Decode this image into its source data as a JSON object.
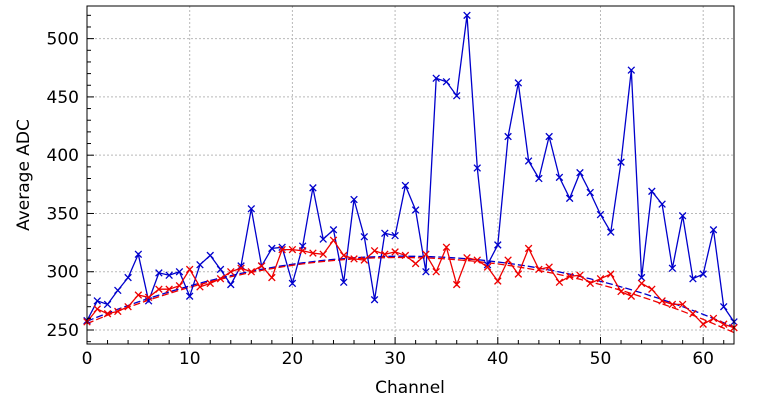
{
  "chart_data": {
    "type": "line",
    "xlabel": "Channel",
    "ylabel": "Average ADC",
    "xlim": [
      0,
      63
    ],
    "ylim": [
      238,
      528
    ],
    "x_ticks": [
      0,
      10,
      20,
      30,
      40,
      50,
      60
    ],
    "y_ticks": [
      250,
      300,
      350,
      400,
      450,
      500
    ],
    "grid": true,
    "series": [
      {
        "color": "#0000cc",
        "marker": "x",
        "values": [
          258,
          275,
          272,
          284,
          295,
          315,
          275,
          299,
          297,
          300,
          279,
          306,
          314,
          302,
          289,
          305,
          354,
          305,
          320,
          321,
          290,
          322,
          372,
          328,
          336,
          291,
          362,
          330,
          276,
          333,
          331,
          374,
          353,
          300,
          466,
          463,
          451,
          520,
          389,
          306,
          323,
          416,
          462,
          395,
          380,
          416,
          381,
          363,
          385,
          368,
          349,
          334,
          394,
          473,
          295,
          369,
          358,
          303,
          348,
          294,
          298,
          336,
          270,
          257
        ]
      },
      {
        "color": "#ee0000",
        "marker": "x",
        "values": [
          257,
          268,
          264,
          266,
          270,
          280,
          278,
          285,
          285,
          288,
          302,
          287,
          290,
          294,
          300,
          303,
          300,
          305,
          295,
          319,
          319,
          318,
          316,
          315,
          327,
          314,
          311,
          310,
          318,
          315,
          317,
          314,
          307,
          315,
          300,
          321,
          289,
          312,
          310,
          304,
          292,
          310,
          298,
          320,
          302,
          304,
          291,
          296,
          297,
          290,
          294,
          298,
          283,
          279,
          290,
          285,
          275,
          272,
          272,
          264,
          255,
          260,
          255,
          252
        ]
      }
    ],
    "fits": [
      {
        "color": "#0000cc",
        "style": "dashed",
        "coefficients": [
          257.5,
          3.62,
          -0.0587
        ]
      },
      {
        "color": "#ee0000",
        "style": "dashed",
        "coefficients": [
          255.5,
          3.72,
          -0.061
        ]
      }
    ]
  }
}
